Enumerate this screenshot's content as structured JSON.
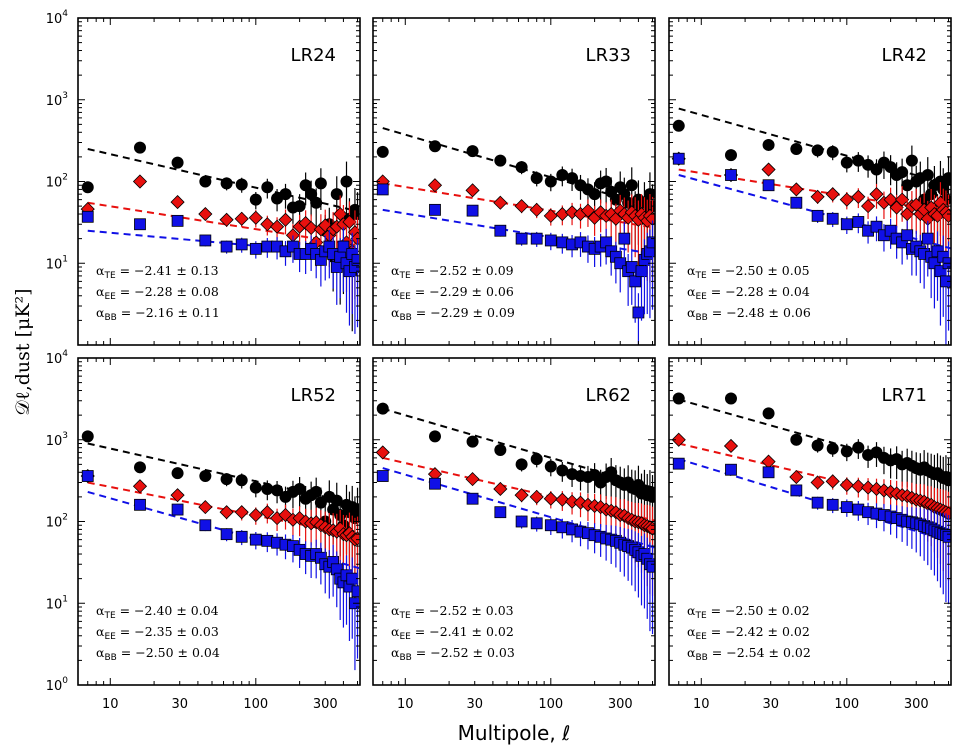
{
  "figure": {
    "xlabel": "Multipole, ℓ",
    "ylabel": "𝒟ℓ,dust [μK²]"
  },
  "chart_data": {
    "type": "scatter",
    "xscale": "log",
    "yscale": "log",
    "xlim": [
      6,
      520
    ],
    "ylim": [
      1,
      10000
    ],
    "x_ticks": [
      10,
      30,
      100,
      300
    ],
    "x_tick_labels": [
      "10",
      "30",
      "100",
      "300"
    ],
    "y_tick_labels": [
      {
        "base": "10",
        "exp": "0"
      },
      {
        "base": "10",
        "exp": "1"
      },
      {
        "base": "10",
        "exp": "2"
      },
      {
        "base": "10",
        "exp": "3"
      },
      {
        "base": "10",
        "exp": "4"
      }
    ],
    "ell": [
      7,
      16,
      29,
      45,
      63,
      80,
      100,
      120,
      140,
      160,
      180,
      200,
      220,
      240,
      260,
      280,
      300,
      320,
      340,
      360,
      380,
      400,
      420,
      440,
      460,
      480,
      500
    ],
    "series_style": [
      {
        "key": "TE",
        "color": "#000000",
        "marker": "circle"
      },
      {
        "key": "EE",
        "color": "#e8100e",
        "marker": "diamond"
      },
      {
        "key": "BB",
        "color": "#1010e6",
        "marker": "square"
      }
    ],
    "panels": [
      {
        "name": "LR24",
        "alphas": [
          "−2.41 ± 0.13",
          "−2.28 ± 0.08",
          "−2.16 ± 0.11"
        ],
        "fit_amp": [
          250,
          55,
          25
        ],
        "fit_slope": [
          -0.41,
          -0.28,
          -0.16
        ],
        "TE": [
          85,
          260,
          170,
          100,
          95,
          92,
          60,
          85,
          62,
          70,
          48,
          50,
          90,
          70,
          55,
          95,
          25,
          30,
          12,
          70,
          10,
          15,
          100,
          35,
          8,
          45,
          40
        ],
        "EE": [
          46,
          100,
          56,
          40,
          34,
          35,
          36,
          30,
          28,
          34,
          22,
          28,
          31,
          27,
          18,
          26,
          29,
          22,
          26,
          28,
          40,
          30,
          18,
          32,
          14,
          24,
          20
        ],
        "BB": [
          37,
          30,
          33,
          19,
          16,
          17,
          15,
          16,
          16,
          14,
          16,
          13,
          13,
          15,
          13,
          11,
          14,
          16,
          13,
          9,
          12,
          16,
          10,
          8,
          13,
          9,
          11
        ]
      },
      {
        "name": "LR33",
        "alphas": [
          "−2.52 ± 0.09",
          "−2.29 ± 0.06",
          "−2.29 ± 0.09"
        ],
        "fit_amp": [
          450,
          95,
          45
        ],
        "fit_slope": [
          -0.52,
          -0.29,
          -0.29
        ],
        "TE": [
          230,
          270,
          235,
          180,
          150,
          110,
          100,
          120,
          110,
          90,
          80,
          70,
          95,
          100,
          75,
          60,
          85,
          70,
          55,
          90,
          45,
          60,
          35,
          55,
          40,
          70,
          50
        ],
        "EE": [
          100,
          90,
          78,
          55,
          50,
          45,
          38,
          40,
          42,
          40,
          44,
          36,
          42,
          38,
          40,
          35,
          44,
          40,
          36,
          42,
          38,
          34,
          40,
          36,
          33,
          38,
          35
        ],
        "BB": [
          80,
          45,
          44,
          25,
          20,
          20,
          19,
          18,
          17,
          18,
          16,
          15,
          16,
          18,
          14,
          12,
          10,
          20,
          8,
          9,
          6,
          2.5,
          8,
          11,
          13,
          14,
          18
        ]
      },
      {
        "name": "LR42",
        "alphas": [
          "−2.50 ± 0.05",
          "−2.28 ± 0.04",
          "−2.48 ± 0.06"
        ],
        "fit_amp": [
          780,
          140,
          120
        ],
        "fit_slope": [
          -0.5,
          -0.28,
          -0.48
        ],
        "TE": [
          480,
          210,
          280,
          250,
          240,
          230,
          170,
          180,
          160,
          140,
          170,
          150,
          120,
          130,
          90,
          180,
          100,
          110,
          60,
          120,
          70,
          90,
          40,
          100,
          80,
          60,
          110
        ],
        "EE": [
          190,
          120,
          140,
          80,
          65,
          70,
          60,
          65,
          50,
          70,
          55,
          60,
          48,
          60,
          40,
          50,
          52,
          40,
          45,
          35,
          48,
          40,
          38,
          55,
          45,
          42,
          38
        ],
        "BB": [
          190,
          120,
          90,
          55,
          38,
          35,
          30,
          32,
          25,
          28,
          22,
          25,
          20,
          18,
          22,
          15,
          16,
          14,
          13,
          20,
          12,
          10,
          14,
          8,
          12,
          6,
          10
        ]
      },
      {
        "name": "LR52",
        "alphas": [
          "−2.40 ± 0.04",
          "−2.35 ± 0.03",
          "−2.50 ± 0.04"
        ],
        "fit_amp": [
          900,
          300,
          230
        ],
        "fit_slope": [
          -0.4,
          -0.35,
          -0.5
        ],
        "TE": [
          1100,
          460,
          390,
          360,
          330,
          320,
          260,
          250,
          240,
          200,
          230,
          250,
          190,
          210,
          230,
          170,
          100,
          200,
          140,
          180,
          120,
          90,
          160,
          130,
          150,
          110,
          140
        ],
        "EE": [
          360,
          270,
          210,
          150,
          130,
          130,
          120,
          130,
          110,
          120,
          105,
          110,
          100,
          95,
          98,
          90,
          85,
          80,
          78,
          75,
          82,
          70,
          68,
          72,
          65,
          60,
          62
        ],
        "BB": [
          360,
          160,
          140,
          90,
          70,
          65,
          60,
          58,
          55,
          52,
          50,
          45,
          40,
          38,
          40,
          36,
          30,
          28,
          32,
          26,
          20,
          18,
          22,
          16,
          20,
          10,
          14
        ]
      },
      {
        "name": "LR62",
        "alphas": [
          "−2.52 ± 0.03",
          "−2.41 ± 0.02",
          "−2.52 ± 0.03"
        ],
        "fit_amp": [
          2400,
          600,
          450
        ],
        "fit_slope": [
          -0.52,
          -0.41,
          -0.52
        ],
        "TE": [
          2400,
          1100,
          950,
          750,
          500,
          580,
          470,
          420,
          380,
          360,
          350,
          370,
          300,
          350,
          400,
          320,
          300,
          280,
          300,
          260,
          250,
          280,
          220,
          240,
          210,
          230,
          200
        ],
        "EE": [
          700,
          380,
          330,
          250,
          210,
          200,
          190,
          185,
          175,
          170,
          160,
          155,
          150,
          140,
          135,
          130,
          120,
          118,
          110,
          105,
          100,
          98,
          95,
          90,
          88,
          85,
          82
        ],
        "BB": [
          360,
          290,
          190,
          130,
          100,
          95,
          90,
          85,
          80,
          75,
          72,
          68,
          65,
          62,
          60,
          58,
          55,
          52,
          50,
          48,
          45,
          42,
          38,
          40,
          35,
          30,
          28
        ]
      },
      {
        "name": "LR71",
        "alphas": [
          "−2.50 ± 0.02",
          "−2.42 ± 0.02",
          "−2.54 ± 0.02"
        ],
        "fit_amp": [
          3100,
          900,
          580
        ],
        "fit_slope": [
          -0.5,
          -0.42,
          -0.54
        ],
        "TE": [
          3200,
          3200,
          2100,
          1000,
          850,
          780,
          720,
          800,
          650,
          700,
          600,
          560,
          580,
          500,
          520,
          480,
          450,
          430,
          460,
          420,
          400,
          380,
          390,
          360,
          340,
          350,
          320
        ],
        "EE": [
          1000,
          840,
          540,
          350,
          300,
          310,
          280,
          270,
          260,
          250,
          240,
          230,
          220,
          210,
          205,
          195,
          185,
          180,
          175,
          165,
          160,
          150,
          145,
          140,
          135,
          130,
          125
        ],
        "BB": [
          510,
          430,
          400,
          240,
          170,
          160,
          150,
          140,
          130,
          125,
          120,
          115,
          110,
          105,
          100,
          98,
          95,
          92,
          88,
          85,
          82,
          78,
          75,
          72,
          70,
          68,
          65
        ]
      }
    ]
  }
}
